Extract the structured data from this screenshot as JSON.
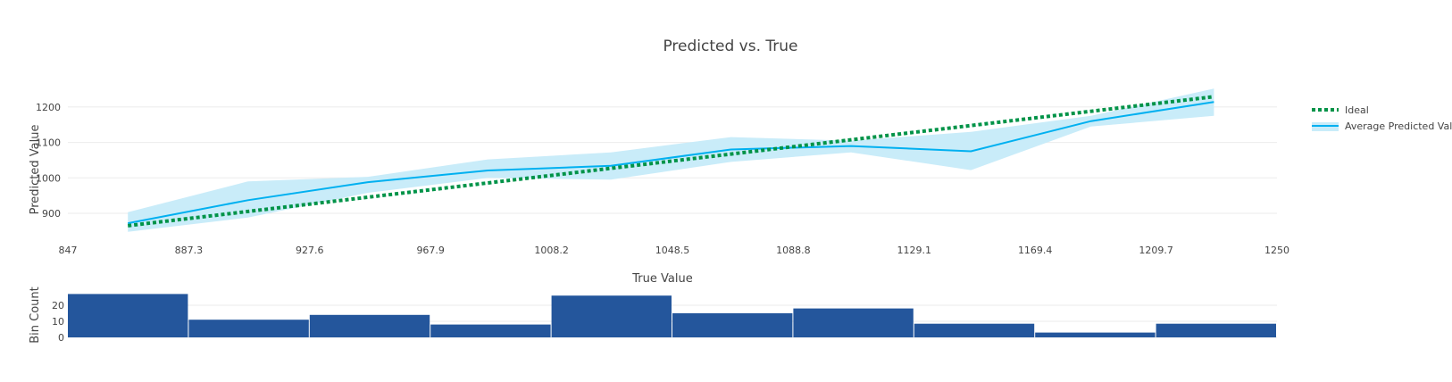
{
  "colors": {
    "ideal": "#009348",
    "avg_line": "#00b0f0",
    "band": "#c9ecf9",
    "hist": "#24569c",
    "grid": "#ebebeb"
  },
  "chart_data": [
    {
      "type": "line",
      "title": "Predicted vs. True",
      "xlabel": "True Value",
      "ylabel": "Predicted Value",
      "xlim": [
        847,
        1250
      ],
      "ylim": [
        822,
        1250
      ],
      "x_ticks": [
        "847",
        "887.3",
        "927.6",
        "967.9",
        "1008.2",
        "1048.5",
        "1088.8",
        "1129.1",
        "1169.4",
        "1209.7",
        "1250"
      ],
      "y_ticks": [
        900,
        1000,
        1100,
        1200
      ],
      "legend_position": "right",
      "series": [
        {
          "name": "Ideal",
          "style": "dotted",
          "x": [
            867,
            1229
          ],
          "y": [
            865,
            1229
          ]
        },
        {
          "name": "Average Predicted Value",
          "style": "solid-with-band",
          "x": [
            867,
            907,
            947,
            987,
            1028,
            1068,
            1108,
            1148,
            1188,
            1229
          ],
          "y": [
            872,
            937,
            988,
            1021,
            1034,
            1080,
            1090,
            1075,
            1160,
            1214
          ],
          "y_upper": [
            903,
            990,
            1003,
            1052,
            1072,
            1115,
            1105,
            1130,
            1175,
            1252
          ],
          "y_lower": [
            848,
            888,
            958,
            1000,
            995,
            1045,
            1072,
            1022,
            1145,
            1175
          ]
        }
      ]
    },
    {
      "type": "bar",
      "ylabel": "Bin Count",
      "ylim": [
        0,
        30
      ],
      "y_ticks": [
        0,
        10,
        20
      ],
      "bins": [
        {
          "start": 847,
          "end": 887.3,
          "count": 27
        },
        {
          "start": 887.3,
          "end": 927.6,
          "count": 11
        },
        {
          "start": 927.6,
          "end": 967.9,
          "count": 14
        },
        {
          "start": 967.9,
          "end": 1008.2,
          "count": 8
        },
        {
          "start": 1008.2,
          "end": 1048.5,
          "count": 26
        },
        {
          "start": 1048.5,
          "end": 1088.8,
          "count": 15
        },
        {
          "start": 1088.8,
          "end": 1129.1,
          "count": 18
        },
        {
          "start": 1129.1,
          "end": 1169.4,
          "count": 8.5
        },
        {
          "start": 1169.4,
          "end": 1209.7,
          "count": 3
        },
        {
          "start": 1209.7,
          "end": 1250,
          "count": 8.5
        }
      ]
    }
  ]
}
